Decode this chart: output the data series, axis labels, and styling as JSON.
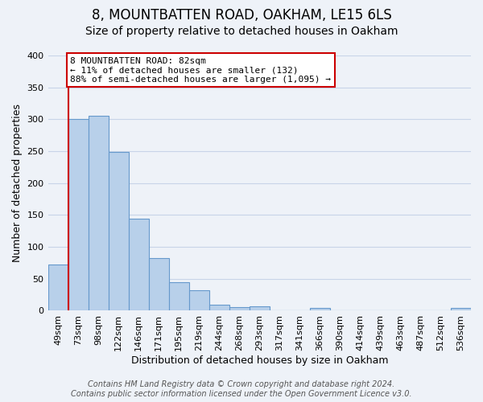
{
  "title": "8, MOUNTBATTEN ROAD, OAKHAM, LE15 6LS",
  "subtitle": "Size of property relative to detached houses in Oakham",
  "xlabel": "Distribution of detached houses by size in Oakham",
  "ylabel": "Number of detached properties",
  "bar_labels": [
    "49sqm",
    "73sqm",
    "98sqm",
    "122sqm",
    "146sqm",
    "171sqm",
    "195sqm",
    "219sqm",
    "244sqm",
    "268sqm",
    "293sqm",
    "317sqm",
    "341sqm",
    "366sqm",
    "390sqm",
    "414sqm",
    "439sqm",
    "463sqm",
    "487sqm",
    "512sqm",
    "536sqm"
  ],
  "bar_values": [
    73,
    300,
    305,
    249,
    144,
    82,
    45,
    32,
    10,
    6,
    7,
    0,
    0,
    4,
    0,
    0,
    0,
    0,
    0,
    0,
    4
  ],
  "bar_color": "#b8d0ea",
  "bar_edge_color": "#6699cc",
  "ylim": [
    0,
    400
  ],
  "yticks": [
    0,
    50,
    100,
    150,
    200,
    250,
    300,
    350,
    400
  ],
  "vline_index": 1,
  "vline_color": "#cc0000",
  "ann_line1": "8 MOUNTBATTEN ROAD: 82sqm",
  "ann_line2": "← 11% of detached houses are smaller (132)",
  "ann_line3": "88% of semi-detached houses are larger (1,095) →",
  "annotation_box_color": "#cc0000",
  "annotation_box_facecolor": "white",
  "footer_line1": "Contains HM Land Registry data © Crown copyright and database right 2024.",
  "footer_line2": "Contains public sector information licensed under the Open Government Licence v3.0.",
  "background_color": "#eef2f8",
  "grid_color": "#c8d4e8",
  "title_fontsize": 12,
  "subtitle_fontsize": 10,
  "axis_label_fontsize": 9,
  "tick_fontsize": 8,
  "footer_fontsize": 7
}
